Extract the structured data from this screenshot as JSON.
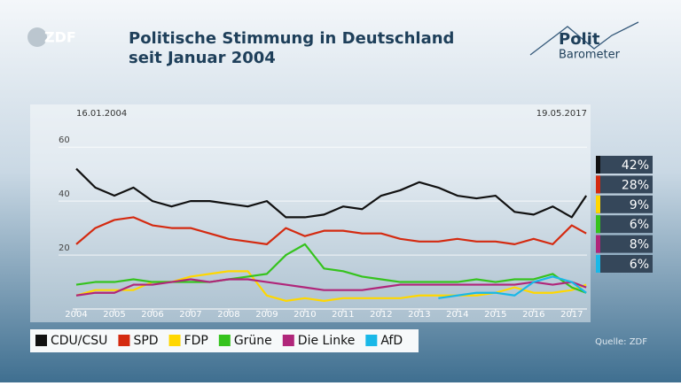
{
  "logo": "ZDF",
  "brand": {
    "line1": "Polit",
    "line2": "Barometer"
  },
  "source": "Quelle: ZDF",
  "chart_data": {
    "type": "line",
    "title": "Politische Stimmung in Deutschland",
    "subtitle": "seit Januar 2004",
    "start_date": "16.01.2004",
    "end_date": "19.05.2017",
    "x": [
      2004,
      2004.5,
      2005,
      2005.5,
      2006,
      2006.5,
      2007,
      2007.5,
      2008,
      2008.5,
      2009,
      2009.5,
      2010,
      2010.5,
      2011,
      2011.5,
      2012,
      2012.5,
      2013,
      2013.5,
      2014,
      2014.5,
      2015,
      2015.5,
      2016,
      2016.5,
      2017,
      2017.38
    ],
    "xlim": [
      2004,
      2017.4
    ],
    "xticks": [
      2004,
      2005,
      2006,
      2007,
      2008,
      2009,
      2010,
      2011,
      2012,
      2013,
      2014,
      2015,
      2016,
      2017
    ],
    "ylim": [
      0,
      64
    ],
    "yticks": [
      20,
      40,
      60
    ],
    "series": [
      {
        "name": "CDU/CSU",
        "color": "#111111",
        "latest": 42,
        "latest_label": "42%",
        "values": [
          52,
          45,
          42,
          45,
          40,
          38,
          40,
          40,
          39,
          38,
          40,
          34,
          34,
          35,
          38,
          37,
          42,
          44,
          47,
          45,
          42,
          41,
          42,
          36,
          35,
          38,
          34,
          42
        ]
      },
      {
        "name": "SPD",
        "color": "#d42a10",
        "latest": 28,
        "latest_label": "28%",
        "values": [
          24,
          30,
          33,
          34,
          31,
          30,
          30,
          28,
          26,
          25,
          24,
          30,
          27,
          29,
          29,
          28,
          28,
          26,
          25,
          25,
          26,
          25,
          25,
          24,
          26,
          24,
          31,
          28
        ]
      },
      {
        "name": "FDP",
        "color": "#ffd700",
        "latest": 9,
        "latest_label": "9%",
        "values": [
          5,
          7,
          7,
          7,
          10,
          10,
          12,
          13,
          14,
          14,
          5,
          3,
          4,
          3,
          4,
          4,
          4,
          4,
          5,
          5,
          5,
          5,
          6,
          8,
          6,
          6,
          7,
          9
        ]
      },
      {
        "name": "Grüne",
        "color": "#35c31d",
        "latest": 6,
        "latest_label": "6%",
        "values": [
          9,
          10,
          10,
          11,
          10,
          10,
          10,
          10,
          11,
          12,
          13,
          20,
          24,
          15,
          14,
          12,
          11,
          10,
          10,
          10,
          10,
          11,
          10,
          11,
          11,
          13,
          8,
          6
        ]
      },
      {
        "name": "Die Linke",
        "color": "#b0267a",
        "latest": 8,
        "latest_label": "8%",
        "values": [
          5,
          6,
          6,
          9,
          9,
          10,
          11,
          10,
          11,
          11,
          10,
          9,
          8,
          7,
          7,
          7,
          8,
          9,
          9,
          9,
          9,
          9,
          9,
          9,
          10,
          9,
          10,
          8
        ]
      },
      {
        "name": "AfD",
        "color": "#19b8e8",
        "latest": 6,
        "latest_label": "6%",
        "values": [
          null,
          null,
          null,
          null,
          null,
          null,
          null,
          null,
          null,
          null,
          null,
          null,
          null,
          null,
          null,
          null,
          null,
          null,
          null,
          4,
          5,
          6,
          6,
          5,
          10,
          12,
          10,
          6
        ]
      }
    ]
  }
}
